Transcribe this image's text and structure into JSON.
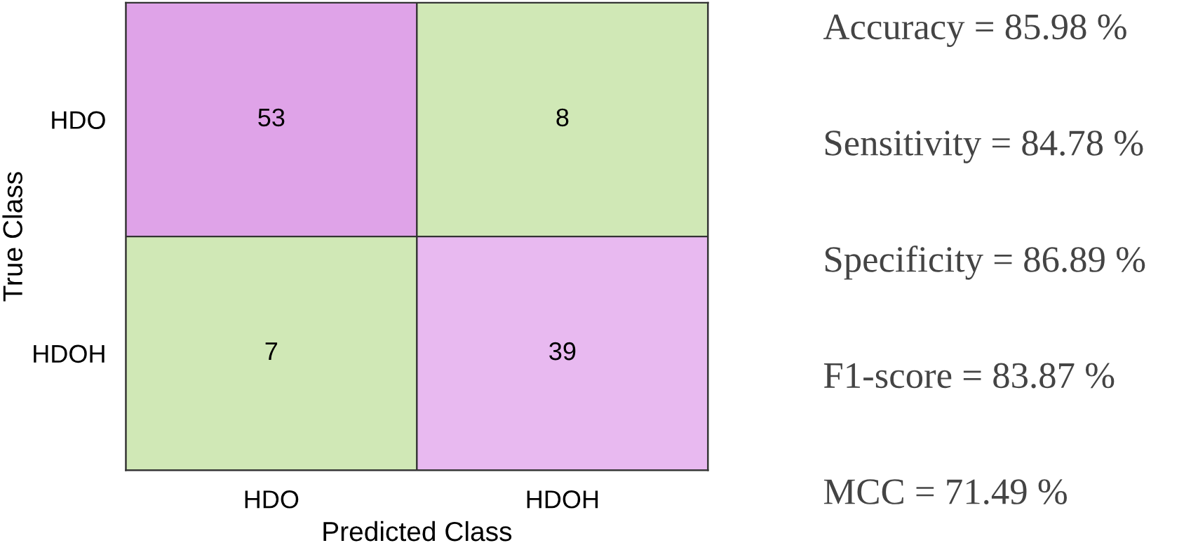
{
  "chart_data": {
    "type": "heatmap",
    "xlabel": "Predicted Class",
    "ylabel": "True Class",
    "categories": [
      "HDO",
      "HDOH"
    ],
    "y_categories": [
      "HDO",
      "HDOH"
    ],
    "cells": [
      [
        53,
        8
      ],
      [
        7,
        39
      ]
    ],
    "colors": [
      [
        "#dfa3e8",
        "#d0e8b6"
      ],
      [
        "#d0e8b6",
        "#e8b9f0"
      ]
    ],
    "data_labels": true,
    "annotations": [
      "Accuracy = 85.98 %",
      "Sensitivity = 84.78 %",
      "Specificity = 86.89 %",
      "F1-score = 83.87 %",
      "MCC = 71.49 %"
    ]
  }
}
